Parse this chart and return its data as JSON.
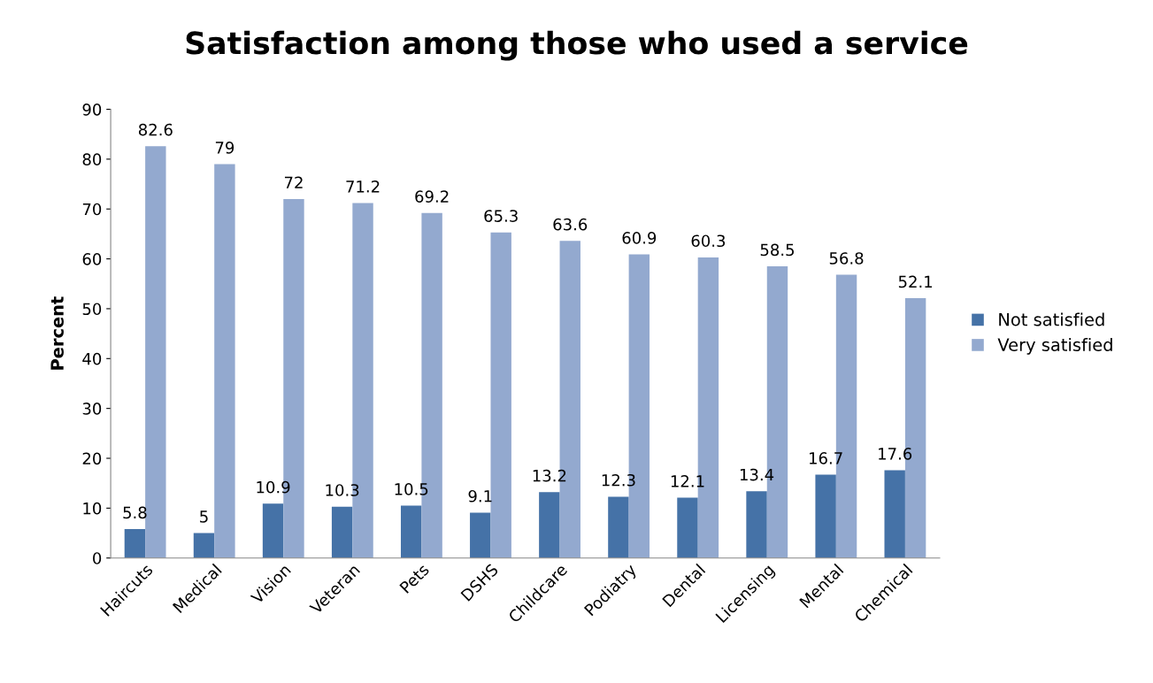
{
  "chart_data": {
    "type": "bar",
    "title": "Satisfaction among those who used a service",
    "ylabel": "Percent",
    "categories": [
      "Haircuts",
      "Medical",
      "Vision",
      "Veteran",
      "Pets",
      "DSHS",
      "Childcare",
      "Podiatry",
      "Dental",
      "Licensing",
      "Mental",
      "Chemical"
    ],
    "series": [
      {
        "name": "Not satisfied",
        "color": "#4572a7",
        "values": [
          5.8,
          5,
          10.9,
          10.3,
          10.5,
          9.1,
          13.2,
          12.3,
          12.1,
          13.4,
          16.7,
          17.6
        ]
      },
      {
        "name": "Very satisfied",
        "color": "#93a9cf",
        "values": [
          82.6,
          79,
          72,
          71.2,
          69.2,
          65.3,
          63.6,
          60.9,
          60.3,
          58.5,
          56.8,
          52.1
        ]
      }
    ],
    "ylim": [
      0,
      90
    ],
    "yticks": [
      0,
      10,
      20,
      30,
      40,
      50,
      60,
      70,
      80,
      90
    ],
    "grid": false,
    "legend": "right",
    "data_labels": true
  }
}
